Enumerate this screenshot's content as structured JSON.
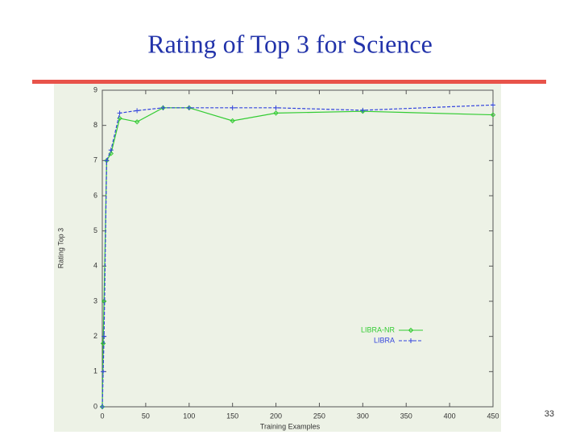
{
  "chart_data": {
    "type": "line",
    "title": "Rating of Top 3 for Science",
    "x_label": "Training Examples",
    "y_label": "Rating Top 3",
    "x": [
      0,
      1,
      2,
      5,
      10,
      20,
      40,
      70,
      100,
      150,
      200,
      300,
      450
    ],
    "series": [
      {
        "name": "LIBRA-NR",
        "color": "#33cc33",
        "marker": "diamond",
        "values": [
          0,
          1.8,
          3,
          7,
          7.2,
          8.2,
          8.1,
          8.5,
          8.5,
          8.13,
          8.35,
          8.4,
          8.3
        ]
      },
      {
        "name": "LIBRA",
        "color": "#3344dd",
        "marker": "plus",
        "values": [
          0,
          1,
          2,
          7,
          7.3,
          8.35,
          8.42,
          8.5,
          8.5,
          8.5,
          8.5,
          8.43,
          8.58
        ]
      }
    ],
    "xlim": [
      0,
      450
    ],
    "ylim": [
      0,
      9
    ],
    "xticks": [
      0,
      50,
      100,
      150,
      200,
      250,
      300,
      350,
      400,
      450
    ],
    "yticks": [
      0,
      1,
      2,
      3,
      4,
      5,
      6,
      7,
      8,
      9
    ],
    "grid": false,
    "legend": "lower-right"
  },
  "page_number": "33"
}
